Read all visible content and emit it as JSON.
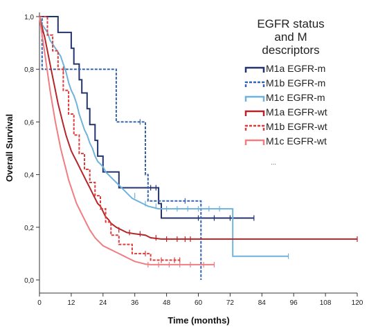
{
  "chart_data": {
    "type": "line",
    "subtype": "kaplan-meier",
    "xlabel": "Time (months)",
    "ylabel": "Overall Survival",
    "xlim": [
      0,
      120
    ],
    "ylim": [
      0,
      1
    ],
    "xticks": [
      0,
      12,
      24,
      36,
      48,
      60,
      72,
      84,
      96,
      108,
      120
    ],
    "yticks": [
      0.0,
      0.2,
      0.4,
      0.6,
      0.8,
      1.0
    ],
    "ytick_labels": [
      "0,0",
      "0,2",
      "0,4",
      "0,6",
      "0,8",
      "1,0"
    ],
    "grid": false,
    "legend": {
      "title_lines": [
        "EGFR status",
        "and M",
        "descriptors"
      ],
      "placement": "top-right",
      "more": "..."
    },
    "series": [
      {
        "name": "M1a EGFR-m",
        "color": "#23336e",
        "dash": "solid",
        "points": [
          [
            0,
            1.0
          ],
          [
            7,
            1.0
          ],
          [
            7,
            0.94
          ],
          [
            12,
            0.94
          ],
          [
            12,
            0.88
          ],
          [
            13,
            0.88
          ],
          [
            13,
            0.82
          ],
          [
            15,
            0.82
          ],
          [
            15,
            0.76
          ],
          [
            16,
            0.76
          ],
          [
            16,
            0.71
          ],
          [
            18,
            0.71
          ],
          [
            18,
            0.65
          ],
          [
            19,
            0.65
          ],
          [
            19,
            0.59
          ],
          [
            21,
            0.59
          ],
          [
            21,
            0.53
          ],
          [
            22,
            0.53
          ],
          [
            22,
            0.47
          ],
          [
            24,
            0.47
          ],
          [
            24,
            0.41
          ],
          [
            30,
            0.41
          ],
          [
            30,
            0.35
          ],
          [
            45,
            0.35
          ],
          [
            45,
            0.29
          ],
          [
            46,
            0.29
          ],
          [
            46,
            0.235
          ],
          [
            81,
            0.235
          ]
        ],
        "censor": [
          [
            42,
            0.35
          ],
          [
            44,
            0.35
          ],
          [
            60,
            0.235
          ],
          [
            66,
            0.235
          ],
          [
            72,
            0.235
          ],
          [
            81,
            0.235
          ]
        ]
      },
      {
        "name": "M1b EGFR-m",
        "color": "#3563b0",
        "dash": "dashed",
        "points": [
          [
            0,
            1.0
          ],
          [
            1,
            1.0
          ],
          [
            1,
            0.8
          ],
          [
            29,
            0.8
          ],
          [
            29,
            0.6
          ],
          [
            40,
            0.6
          ],
          [
            40,
            0.4
          ],
          [
            41,
            0.4
          ],
          [
            41,
            0.3
          ],
          [
            61,
            0.3
          ],
          [
            61,
            0.0
          ]
        ],
        "censor": [
          [
            38,
            0.6
          ],
          [
            55,
            0.3
          ]
        ]
      },
      {
        "name": "M1c EGFR-m",
        "color": "#6fb3dc",
        "dash": "solid",
        "points": [
          [
            0,
            1.0
          ],
          [
            1,
            0.97
          ],
          [
            3,
            0.94
          ],
          [
            4,
            0.91
          ],
          [
            6,
            0.88
          ],
          [
            8,
            0.85
          ],
          [
            9,
            0.82
          ],
          [
            10,
            0.79
          ],
          [
            11,
            0.75
          ],
          [
            12,
            0.72
          ],
          [
            13,
            0.7
          ],
          [
            14,
            0.67
          ],
          [
            15,
            0.63
          ],
          [
            16,
            0.6
          ],
          [
            17,
            0.57
          ],
          [
            18,
            0.55
          ],
          [
            19,
            0.52
          ],
          [
            20,
            0.5
          ],
          [
            21,
            0.47
          ],
          [
            22,
            0.45
          ],
          [
            24,
            0.43
          ],
          [
            25,
            0.41
          ],
          [
            27,
            0.39
          ],
          [
            29,
            0.37
          ],
          [
            31,
            0.35
          ],
          [
            33,
            0.33
          ],
          [
            35,
            0.31
          ],
          [
            37,
            0.3
          ],
          [
            39,
            0.29
          ],
          [
            41,
            0.28
          ],
          [
            45,
            0.27
          ],
          [
            73,
            0.27
          ],
          [
            73,
            0.09
          ],
          [
            94,
            0.09
          ]
        ],
        "censor": [
          [
            36,
            0.32
          ],
          [
            40,
            0.29
          ],
          [
            44,
            0.28
          ],
          [
            48,
            0.27
          ],
          [
            52,
            0.27
          ],
          [
            56,
            0.27
          ],
          [
            60,
            0.27
          ],
          [
            64,
            0.27
          ],
          [
            68,
            0.27
          ],
          [
            94,
            0.09
          ]
        ]
      },
      {
        "name": "M1a EGFR-wt",
        "color": "#b42428",
        "dash": "solid",
        "points": [
          [
            0,
            1.0
          ],
          [
            1,
            0.96
          ],
          [
            2,
            0.92
          ],
          [
            3,
            0.87
          ],
          [
            4,
            0.82
          ],
          [
            5,
            0.77
          ],
          [
            6,
            0.72
          ],
          [
            7,
            0.67
          ],
          [
            8,
            0.63
          ],
          [
            9,
            0.59
          ],
          [
            10,
            0.55
          ],
          [
            11,
            0.52
          ],
          [
            12,
            0.49
          ],
          [
            13,
            0.47
          ],
          [
            14,
            0.45
          ],
          [
            15,
            0.43
          ],
          [
            16,
            0.41
          ],
          [
            17,
            0.39
          ],
          [
            18,
            0.37
          ],
          [
            19,
            0.35
          ],
          [
            20,
            0.33
          ],
          [
            21,
            0.31
          ],
          [
            22,
            0.29
          ],
          [
            23,
            0.28
          ],
          [
            24,
            0.26
          ],
          [
            25,
            0.24
          ],
          [
            26,
            0.23
          ],
          [
            27,
            0.215
          ],
          [
            29,
            0.2
          ],
          [
            31,
            0.19
          ],
          [
            33,
            0.18
          ],
          [
            36,
            0.175
          ],
          [
            40,
            0.17
          ],
          [
            42,
            0.16
          ],
          [
            46,
            0.155
          ],
          [
            120,
            0.155
          ]
        ],
        "censor": [
          [
            30,
            0.19
          ],
          [
            34,
            0.18
          ],
          [
            38,
            0.175
          ],
          [
            44,
            0.16
          ],
          [
            48,
            0.155
          ],
          [
            52,
            0.155
          ],
          [
            55,
            0.155
          ],
          [
            57,
            0.155
          ],
          [
            120,
            0.155
          ]
        ]
      },
      {
        "name": "M1b EGFR-wt",
        "color": "#dc3c3c",
        "dash": "dashed",
        "points": [
          [
            0,
            1.0
          ],
          [
            3,
            1.0
          ],
          [
            3,
            0.93
          ],
          [
            5,
            0.93
          ],
          [
            5,
            0.87
          ],
          [
            7,
            0.87
          ],
          [
            7,
            0.8
          ],
          [
            9,
            0.8
          ],
          [
            9,
            0.72
          ],
          [
            11,
            0.72
          ],
          [
            11,
            0.63
          ],
          [
            13,
            0.63
          ],
          [
            13,
            0.55
          ],
          [
            15,
            0.55
          ],
          [
            15,
            0.48
          ],
          [
            17,
            0.48
          ],
          [
            17,
            0.42
          ],
          [
            19,
            0.42
          ],
          [
            19,
            0.37
          ],
          [
            21,
            0.37
          ],
          [
            21,
            0.32
          ],
          [
            23,
            0.32
          ],
          [
            23,
            0.27
          ],
          [
            25,
            0.27
          ],
          [
            25,
            0.22
          ],
          [
            27,
            0.22
          ],
          [
            27,
            0.17
          ],
          [
            30,
            0.17
          ],
          [
            30,
            0.135
          ],
          [
            35,
            0.135
          ],
          [
            35,
            0.1
          ],
          [
            42,
            0.1
          ],
          [
            42,
            0.075
          ],
          [
            53,
            0.075
          ]
        ],
        "censor": [
          [
            9,
            0.8
          ],
          [
            40,
            0.1
          ],
          [
            46,
            0.075
          ],
          [
            51,
            0.075
          ],
          [
            53,
            0.075
          ]
        ]
      },
      {
        "name": "M1c EGFR-wt",
        "color": "#f07d80",
        "dash": "solid",
        "points": [
          [
            0,
            1.0
          ],
          [
            1,
            0.93
          ],
          [
            2,
            0.86
          ],
          [
            3,
            0.79
          ],
          [
            4,
            0.72
          ],
          [
            5,
            0.66
          ],
          [
            6,
            0.6
          ],
          [
            7,
            0.55
          ],
          [
            8,
            0.5
          ],
          [
            9,
            0.46
          ],
          [
            10,
            0.42
          ],
          [
            11,
            0.38
          ],
          [
            12,
            0.35
          ],
          [
            13,
            0.32
          ],
          [
            14,
            0.29
          ],
          [
            15,
            0.27
          ],
          [
            16,
            0.25
          ],
          [
            17,
            0.23
          ],
          [
            18,
            0.21
          ],
          [
            19,
            0.19
          ],
          [
            20,
            0.175
          ],
          [
            21,
            0.16
          ],
          [
            22,
            0.15
          ],
          [
            23,
            0.14
          ],
          [
            24,
            0.13
          ],
          [
            26,
            0.12
          ],
          [
            28,
            0.11
          ],
          [
            30,
            0.1
          ],
          [
            32,
            0.09
          ],
          [
            34,
            0.08
          ],
          [
            36,
            0.07
          ],
          [
            38,
            0.065
          ],
          [
            40,
            0.06
          ],
          [
            42,
            0.058
          ],
          [
            44,
            0.058
          ],
          [
            46,
            0.058
          ],
          [
            66,
            0.058
          ]
        ],
        "censor": [
          [
            41,
            0.058
          ],
          [
            45,
            0.058
          ],
          [
            49,
            0.058
          ],
          [
            53,
            0.058
          ],
          [
            57,
            0.058
          ],
          [
            62,
            0.058
          ],
          [
            66,
            0.058
          ]
        ]
      }
    ]
  }
}
